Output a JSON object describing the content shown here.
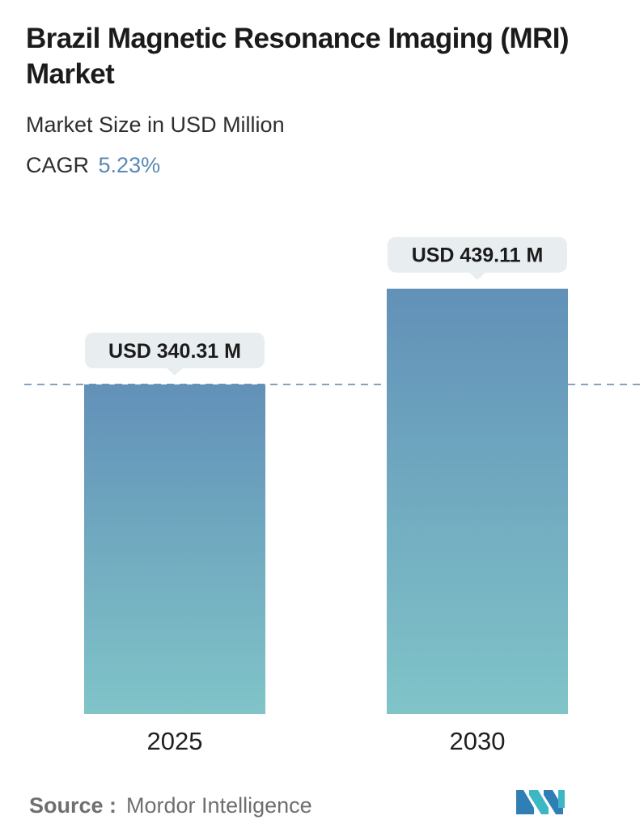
{
  "header": {
    "title": "Brazil Magnetic Resonance Imaging (MRI) Market",
    "subtitle": "Market Size in USD Million",
    "cagr_label": "CAGR",
    "cagr_value": "5.23%"
  },
  "chart_data": {
    "type": "bar",
    "title": "Brazil Magnetic Resonance Imaging (MRI) Market",
    "subtitle": "Market Size in USD Million",
    "categories": [
      "2025",
      "2030"
    ],
    "values": [
      340.31,
      439.11
    ],
    "value_labels": [
      "USD 340.31 M",
      "USD 439.11 M"
    ],
    "unit": "USD Million",
    "grid": false,
    "reference_line": "dashed line at the 2025 value",
    "colors": {
      "bar_top": "#6291b8",
      "bar_bottom": "#80c4c8",
      "callout": "#e8eef0",
      "dashed_line": "#5f84a6"
    }
  },
  "footer": {
    "source_label": "Source :",
    "source_value": "Mordor Intelligence",
    "logo_icon": "mordor-intelligence-logo-icon"
  }
}
